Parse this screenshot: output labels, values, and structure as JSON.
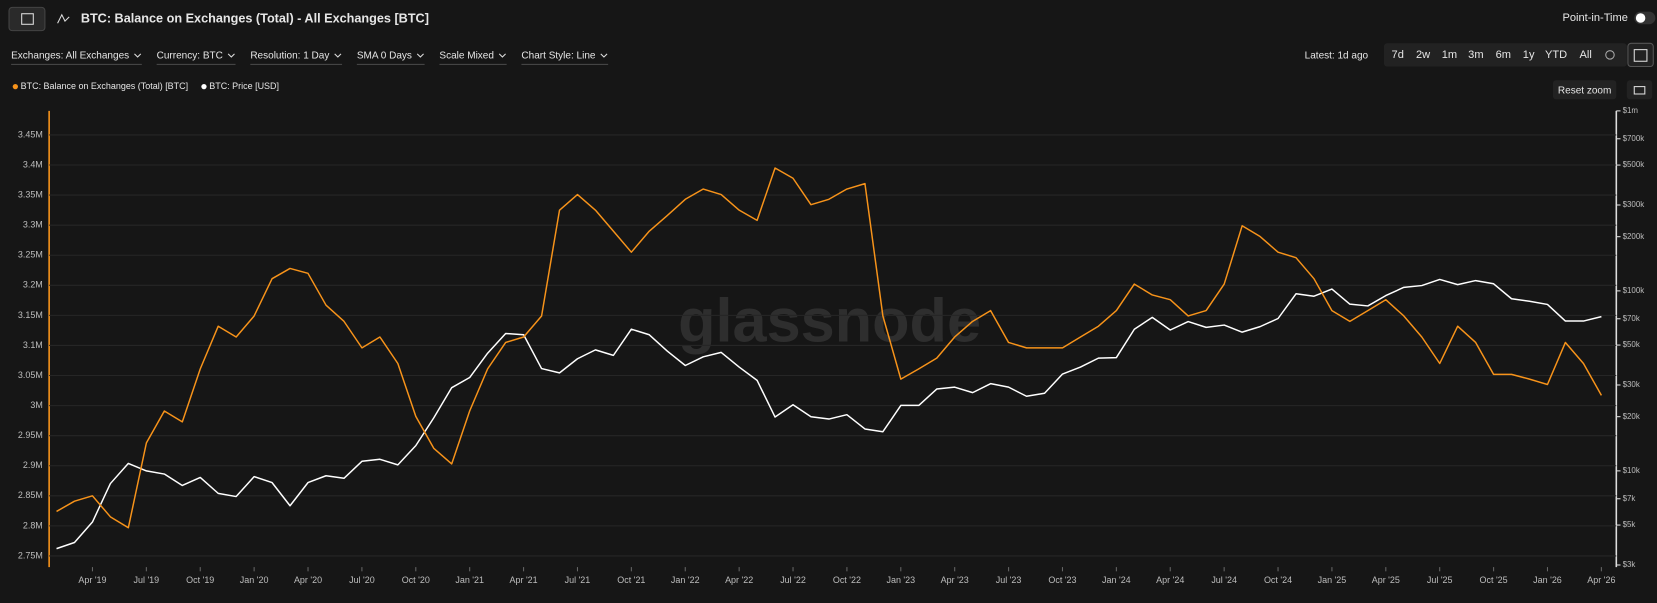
{
  "ui": {
    "point_in_time": "Point-in-Time",
    "filters": [
      "Exchanges: All Exchanges",
      "Currency: BTC",
      "Resolution: 1 Day",
      "SMA 0 Days",
      "Scale Mixed",
      "Chart Style: Line"
    ],
    "latest": "Latest: 1d ago",
    "ranges": [
      "7d",
      "2w",
      "1m",
      "3m",
      "6m",
      "1y",
      "YTD",
      "All"
    ],
    "reset_zoom": "Reset zoom"
  },
  "chart_data": {
    "type": "line",
    "title": "BTC: Balance on Exchanges (Total) - All Exchanges [BTC]",
    "watermark": "glassnode",
    "grid": true,
    "x": [
      "2019-02",
      "2019-03",
      "2019-04",
      "2019-05",
      "2019-06",
      "2019-07",
      "2019-08",
      "2019-09",
      "2019-10",
      "2019-11",
      "2019-12",
      "2020-01",
      "2020-02",
      "2020-03",
      "2020-04",
      "2020-05",
      "2020-06",
      "2020-07",
      "2020-08",
      "2020-09",
      "2020-10",
      "2020-11",
      "2020-12",
      "2021-01",
      "2021-02",
      "2021-03",
      "2021-04",
      "2021-05",
      "2021-06",
      "2021-07",
      "2021-08",
      "2021-09",
      "2021-10",
      "2021-11",
      "2021-12",
      "2022-01",
      "2022-02",
      "2022-03",
      "2022-04",
      "2022-05",
      "2022-06",
      "2022-07",
      "2022-08",
      "2022-09",
      "2022-10",
      "2022-11",
      "2022-12",
      "2023-01",
      "2023-02",
      "2023-03",
      "2023-04",
      "2023-05",
      "2023-06",
      "2023-07",
      "2023-08",
      "2023-09",
      "2023-10",
      "2023-11",
      "2023-12",
      "2024-01",
      "2024-02",
      "2024-03",
      "2024-04",
      "2024-05",
      "2024-06",
      "2024-07",
      "2024-08",
      "2024-09",
      "2024-10",
      "2024-11",
      "2024-12",
      "2025-01",
      "2025-02",
      "2025-03",
      "2025-04",
      "2025-05",
      "2025-06",
      "2025-07",
      "2025-08",
      "2025-09",
      "2025-10",
      "2025-11",
      "2025-12",
      "2026-01",
      "2026-02",
      "2026-03",
      "2026-04"
    ],
    "series": [
      {
        "name": "BTC: Balance on Exchanges (Total) [BTC]",
        "color": "#f7931a",
        "values": [
          2824000,
          2841000,
          2850000,
          2815000,
          2797000,
          2938000,
          2991000,
          2973000,
          3061000,
          3132000,
          3114000,
          3149000,
          3211000,
          3228000,
          3220000,
          3167000,
          3140000,
          3096000,
          3114000,
          3070000,
          2982000,
          2929000,
          2903000,
          2991000,
          3061000,
          3105000,
          3114000,
          3149000,
          3325000,
          3351000,
          3325000,
          3290000,
          3255000,
          3290000,
          3316000,
          3343000,
          3360000,
          3351000,
          3325000,
          3308000,
          3395000,
          3378000,
          3334000,
          3343000,
          3360000,
          3369000,
          3149000,
          3044000,
          3061000,
          3079000,
          3114000,
          3140000,
          3158000,
          3105000,
          3096000,
          3096000,
          3096000,
          3114000,
          3132000,
          3158000,
          3202000,
          3184000,
          3176000,
          3149000,
          3158000,
          3202000,
          3299000,
          3281000,
          3255000,
          3246000,
          3211000,
          3158000,
          3140000,
          3158000,
          3176000,
          3149000,
          3114000,
          3070000,
          3132000,
          3105000,
          3052000,
          3052000,
          3044000,
          3035000,
          3105000,
          3070000,
          3017000
        ]
      },
      {
        "name": "BTC: Price [USD]",
        "color": "#ffffff",
        "axis": "y2",
        "values": [
          3700,
          4000,
          5200,
          8500,
          11000,
          10000,
          9600,
          8300,
          9200,
          7500,
          7200,
          9300,
          8600,
          6400,
          8600,
          9400,
          9100,
          11300,
          11600,
          10800,
          13800,
          19700,
          29000,
          33000,
          45000,
          58000,
          57000,
          37000,
          35000,
          42000,
          47000,
          43800,
          61300,
          57000,
          46300,
          38500,
          43000,
          45500,
          37700,
          31800,
          19900,
          23300,
          20000,
          19400,
          20500,
          17100,
          16500,
          23100,
          23100,
          28500,
          29200,
          27200,
          30500,
          29200,
          26000,
          27000,
          34500,
          37700,
          42300,
          42600,
          61200,
          71300,
          60600,
          67500,
          62700,
          64600,
          59000,
          63300,
          70200,
          96400,
          93400,
          102400,
          84400,
          82500,
          94200,
          104600,
          107100,
          115700,
          108300,
          114000,
          109500,
          90400,
          87500,
          84000,
          68000,
          68000,
          72000
        ]
      }
    ],
    "ylim": [
      2735000,
      3490000
    ],
    "yticks": [
      {
        "value": 2750000,
        "label": "2.75M"
      },
      {
        "value": 2800000,
        "label": "2.8M"
      },
      {
        "value": 2850000,
        "label": "2.85M"
      },
      {
        "value": 2900000,
        "label": "2.9M"
      },
      {
        "value": 2950000,
        "label": "2.95M"
      },
      {
        "value": 3000000,
        "label": "3M"
      },
      {
        "value": 3050000,
        "label": "3.05M"
      },
      {
        "value": 3100000,
        "label": "3.1M"
      },
      {
        "value": 3150000,
        "label": "3.15M"
      },
      {
        "value": 3200000,
        "label": "3.2M"
      },
      {
        "value": 3250000,
        "label": "3.25M"
      },
      {
        "value": 3300000,
        "label": "3.3M"
      },
      {
        "value": 3350000,
        "label": "3.35M"
      },
      {
        "value": 3400000,
        "label": "3.4M"
      },
      {
        "value": 3450000,
        "label": "3.45M"
      }
    ],
    "y2lim": [
      3000,
      1000000
    ],
    "y2scale": "log",
    "y2ticks": [
      {
        "value": 3000,
        "label": "$3k"
      },
      {
        "value": 5000,
        "label": "$5k"
      },
      {
        "value": 7000,
        "label": "$7k"
      },
      {
        "value": 10000,
        "label": "$10k"
      },
      {
        "value": 20000,
        "label": "$20k"
      },
      {
        "value": 30000,
        "label": "$30k"
      },
      {
        "value": 50000,
        "label": "$50k"
      },
      {
        "value": 70000,
        "label": "$70k"
      },
      {
        "value": 100000,
        "label": "$100k"
      },
      {
        "value": 200000,
        "label": "$200k"
      },
      {
        "value": 300000,
        "label": "$300k"
      },
      {
        "value": 500000,
        "label": "$500k"
      },
      {
        "value": 700000,
        "label": "$700k"
      },
      {
        "value": 1000000,
        "label": "$1m"
      }
    ],
    "xticks": [
      {
        "value": "2019-04",
        "label": "Apr '19"
      },
      {
        "value": "2019-07",
        "label": "Jul '19"
      },
      {
        "value": "2019-10",
        "label": "Oct '19"
      },
      {
        "value": "2020-01",
        "label": "Jan '20"
      },
      {
        "value": "2020-04",
        "label": "Apr '20"
      },
      {
        "value": "2020-07",
        "label": "Jul '20"
      },
      {
        "value": "2020-10",
        "label": "Oct '20"
      },
      {
        "value": "2021-01",
        "label": "Jan '21"
      },
      {
        "value": "2021-04",
        "label": "Apr '21"
      },
      {
        "value": "2021-07",
        "label": "Jul '21"
      },
      {
        "value": "2021-10",
        "label": "Oct '21"
      },
      {
        "value": "2022-01",
        "label": "Jan '22"
      },
      {
        "value": "2022-04",
        "label": "Apr '22"
      },
      {
        "value": "2022-07",
        "label": "Jul '22"
      },
      {
        "value": "2022-10",
        "label": "Oct '22"
      },
      {
        "value": "2023-01",
        "label": "Jan '23"
      },
      {
        "value": "2023-04",
        "label": "Apr '23"
      },
      {
        "value": "2023-07",
        "label": "Jul '23"
      },
      {
        "value": "2023-10",
        "label": "Oct '23"
      },
      {
        "value": "2024-01",
        "label": "Jan '24"
      },
      {
        "value": "2024-04",
        "label": "Apr '24"
      },
      {
        "value": "2024-07",
        "label": "Jul '24"
      },
      {
        "value": "2024-10",
        "label": "Oct '24"
      },
      {
        "value": "2025-01",
        "label": "Jan '25"
      },
      {
        "value": "2025-04",
        "label": "Apr '25"
      },
      {
        "value": "2025-07",
        "label": "Jul '25"
      },
      {
        "value": "2025-10",
        "label": "Oct '25"
      },
      {
        "value": "2026-01",
        "label": "Jan '26"
      },
      {
        "value": "2026-04",
        "label": "Apr '26"
      }
    ]
  }
}
